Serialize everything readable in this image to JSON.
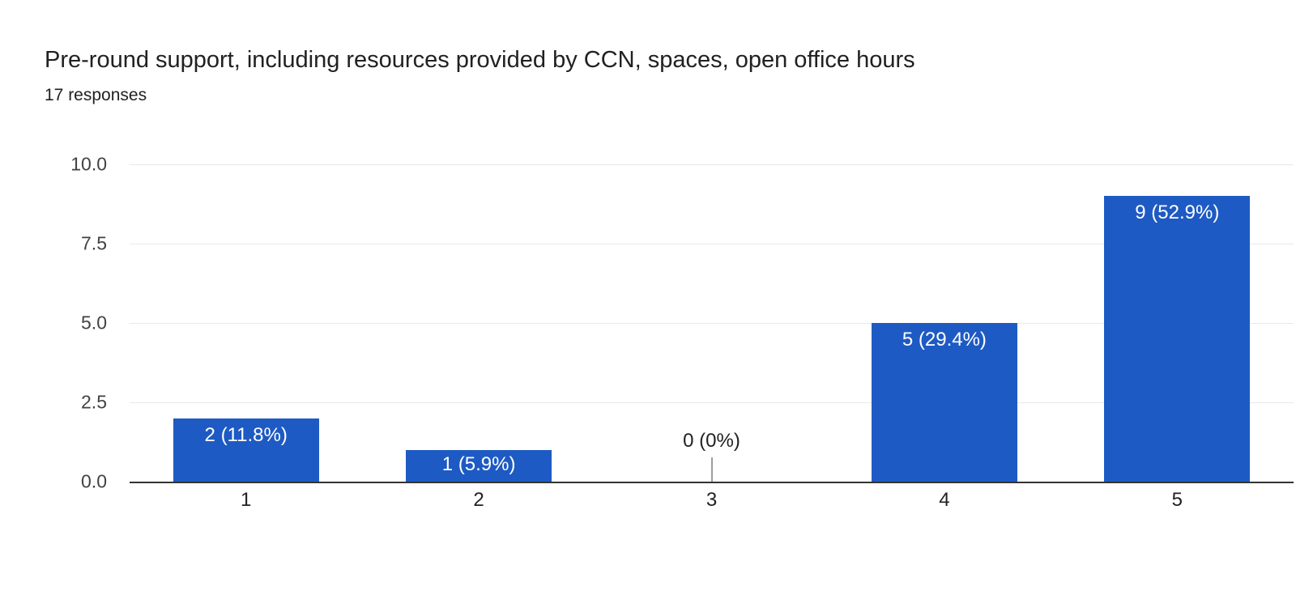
{
  "header": {
    "title": "Pre-round support, including resources provided by CCN, spaces, open office hours",
    "subtitle": "17 responses"
  },
  "chart_data": {
    "type": "bar",
    "title": "Pre-round support, including resources provided by CCN, spaces, open office hours",
    "subtitle": "17 responses",
    "categories": [
      "1",
      "2",
      "3",
      "4",
      "5"
    ],
    "values": [
      2,
      1,
      0,
      5,
      9
    ],
    "data_labels": [
      "2 (11.8%)",
      "1 (5.9%)",
      "0 (0%)",
      "5 (29.4%)",
      "9 (52.9%)"
    ],
    "total_responses": 17,
    "xlabel": "",
    "ylabel": "",
    "ylim": [
      0,
      10
    ],
    "yticks": [
      10.0,
      7.5,
      5.0,
      2.5,
      0.0
    ],
    "ytick_labels": [
      "10.0",
      "7.5",
      "5.0",
      "2.5",
      "0.0"
    ],
    "grid": true,
    "legend": false,
    "colors": {
      "bar": "#1e5ac3",
      "bar_label_text": "#ffffff",
      "zero_label_text": "#212121",
      "axis_line": "#333333",
      "gridline": "#e9e9e9",
      "tick_text": "#424242"
    }
  }
}
